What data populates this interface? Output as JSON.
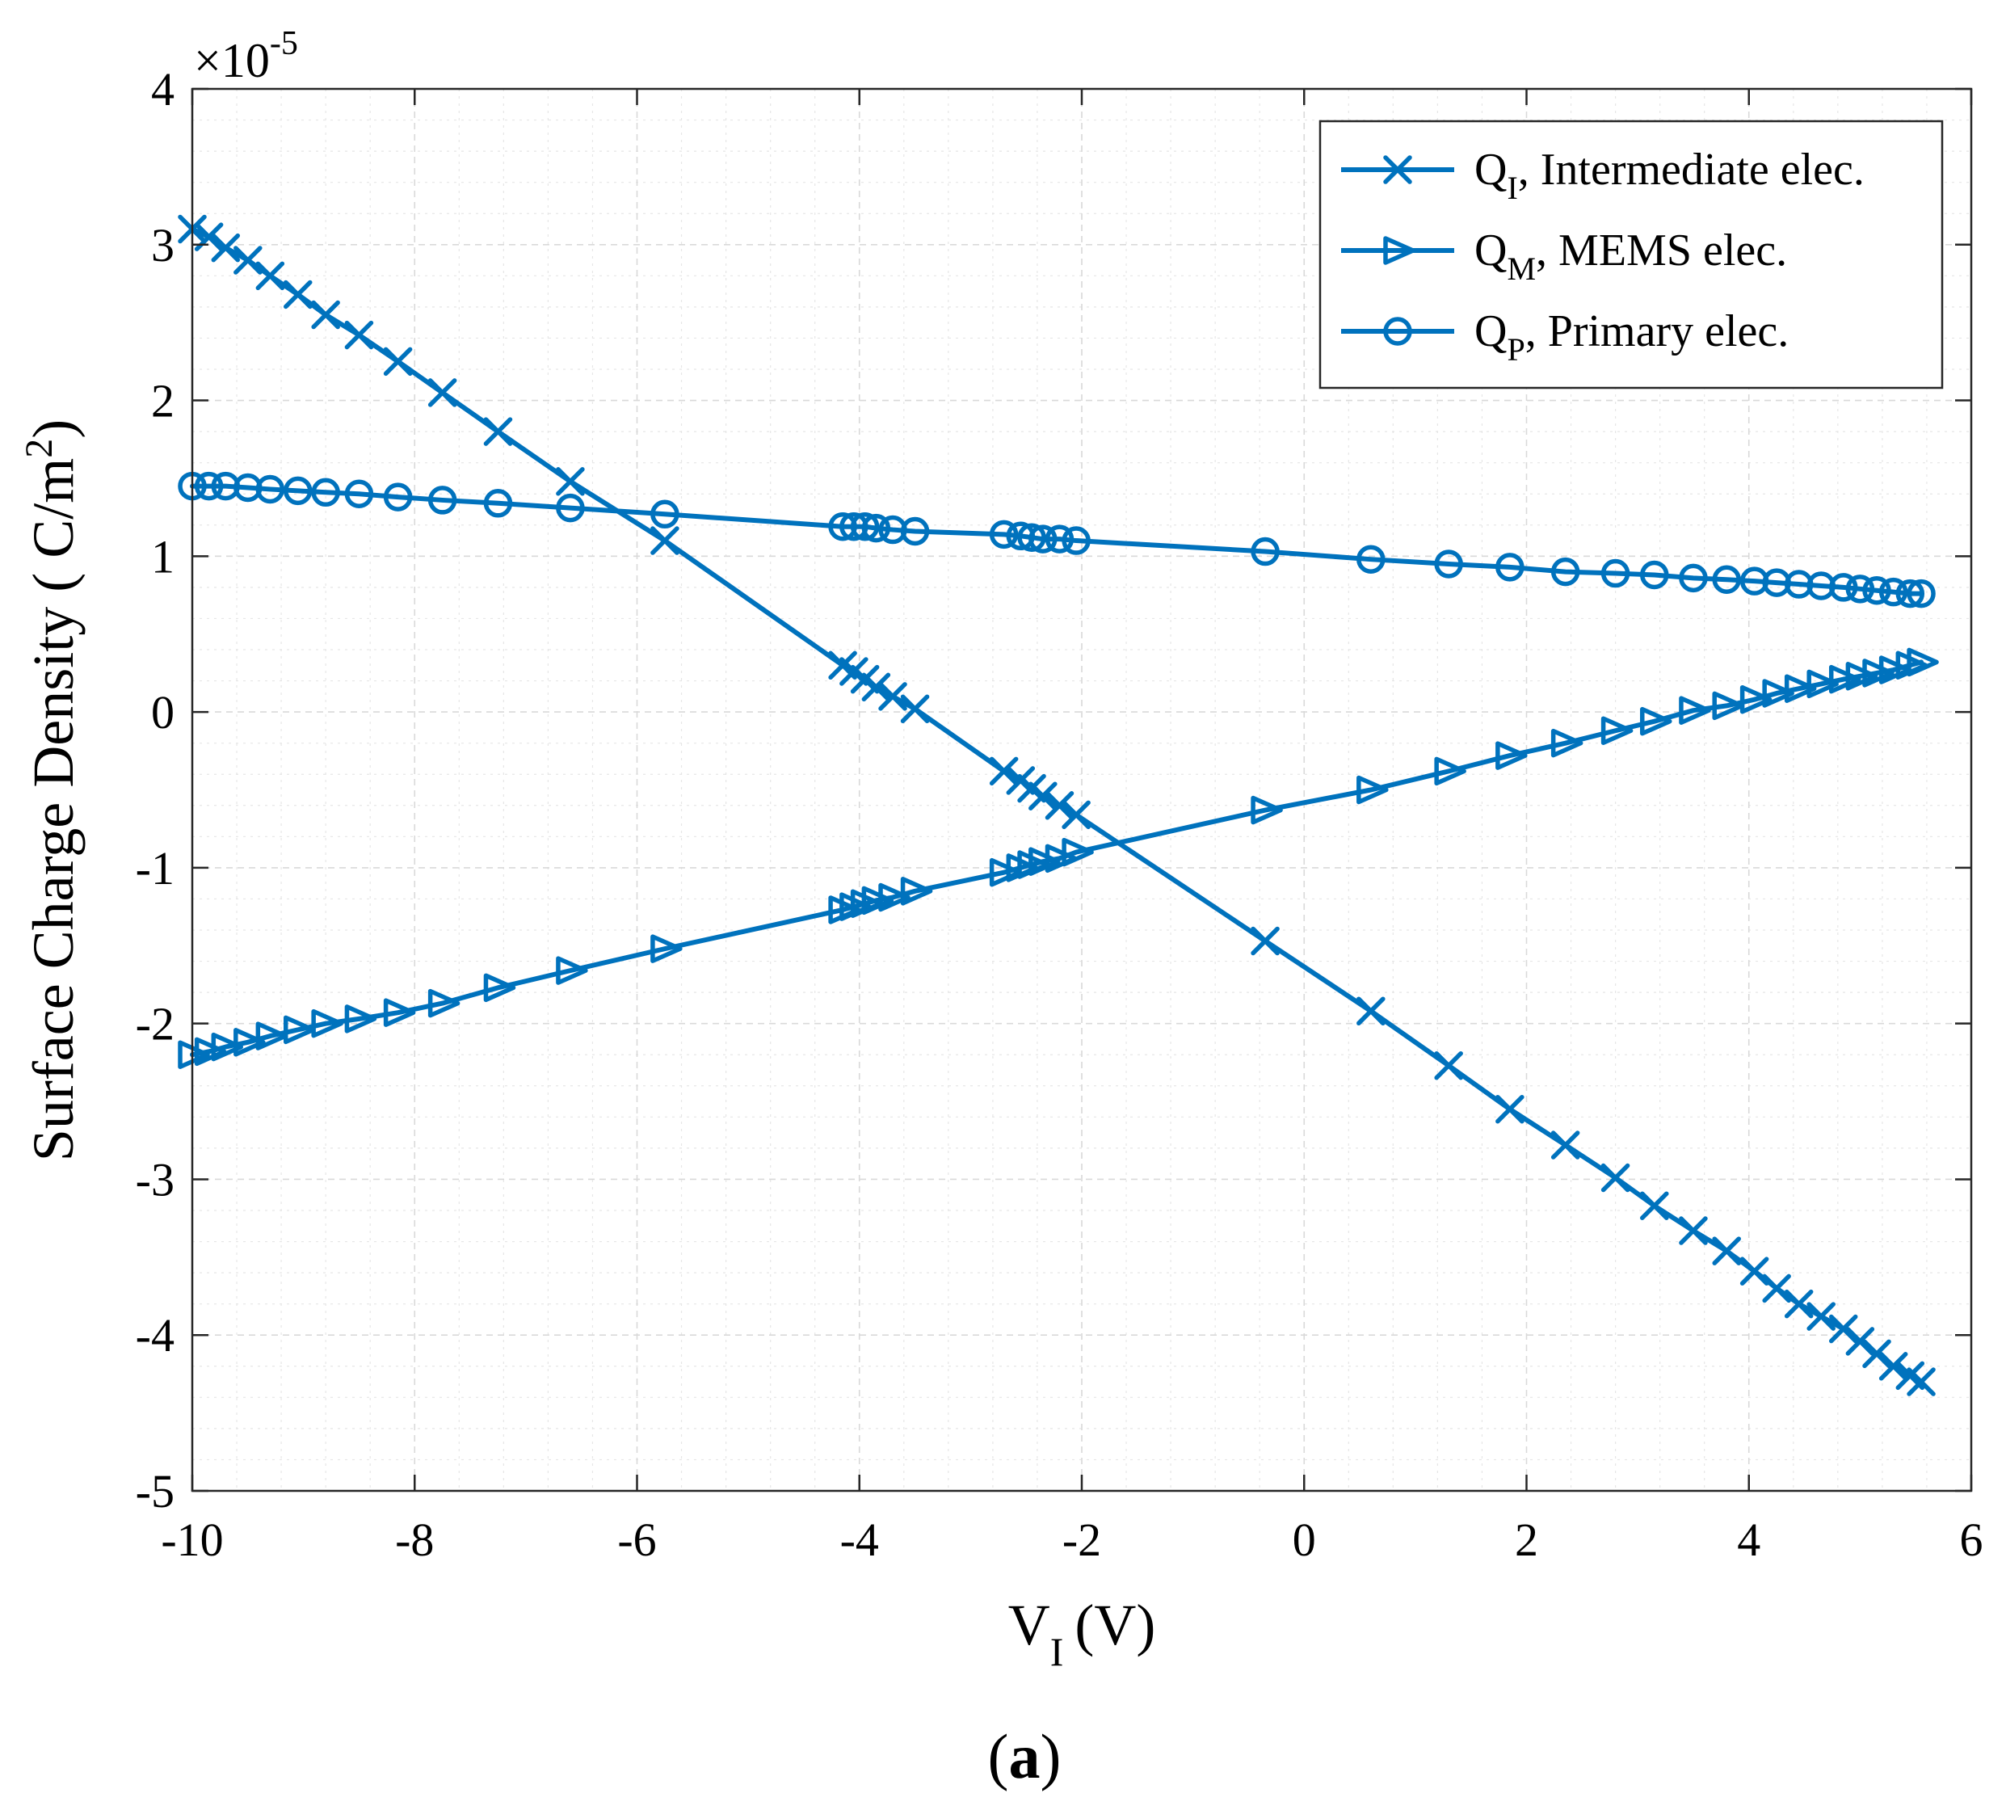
{
  "chart_data": {
    "type": "line",
    "title": "",
    "xlabel": {
      "main": "V",
      "sub": "I",
      "unit": "(V)"
    },
    "ylabel": {
      "prefix": "Surface Charge Density ( C/m",
      "sup": "2",
      "suffix": ")"
    },
    "y_scale": {
      "base": "10",
      "exponent": "-5"
    },
    "xlim": [
      -10,
      6
    ],
    "ylim": [
      -5,
      4
    ],
    "x_ticks": [
      -10,
      -8,
      -6,
      -4,
      -2,
      0,
      2,
      4,
      6
    ],
    "y_ticks": [
      -5,
      -4,
      -3,
      -2,
      -1,
      0,
      1,
      2,
      3,
      4
    ],
    "x_tick_labels": [
      "-10",
      "-8",
      "-6",
      "-4",
      "-2",
      "0",
      "2",
      "4",
      "6"
    ],
    "y_tick_labels": [
      "-5",
      "-4",
      "-3",
      "-2",
      "-1",
      "0",
      "1",
      "2",
      "3",
      "4"
    ],
    "grid": "on (major + minor)",
    "legend_position": "top-right",
    "color": "#0072bd",
    "caption": {
      "open": "(",
      "letter": "a",
      "close": ")"
    },
    "series": [
      {
        "name": "Q_I, Intermediate elec.",
        "legend": {
          "main": "Q",
          "sub": "I",
          "rest": ", Intermediate elec."
        },
        "marker": "x",
        "x": [
          -10,
          -9.85,
          -9.7,
          -9.5,
          -9.3,
          -9.05,
          -8.8,
          -8.5,
          -8.15,
          -7.75,
          -7.25,
          -6.6,
          -5.75,
          -4.15,
          -4.05,
          -3.95,
          -3.85,
          -3.7,
          -3.5,
          -2.7,
          -2.55,
          -2.45,
          -2.35,
          -2.2,
          -2.05,
          -0.35,
          0.6,
          1.3,
          1.85,
          2.35,
          2.8,
          3.15,
          3.5,
          3.8,
          4.05,
          4.25,
          4.45,
          4.65,
          4.85,
          5.0,
          5.15,
          5.3,
          5.45,
          5.55
        ],
        "values": [
          3.1,
          3.05,
          2.98,
          2.9,
          2.8,
          2.68,
          2.55,
          2.42,
          2.25,
          2.05,
          1.8,
          1.48,
          1.1,
          0.3,
          0.26,
          0.21,
          0.16,
          0.1,
          0.02,
          -0.38,
          -0.44,
          -0.49,
          -0.54,
          -0.6,
          -0.66,
          -1.47,
          -1.92,
          -2.27,
          -2.55,
          -2.78,
          -2.99,
          -3.17,
          -3.33,
          -3.46,
          -3.59,
          -3.7,
          -3.8,
          -3.88,
          -3.96,
          -4.04,
          -4.12,
          -4.2,
          -4.26,
          -4.3
        ]
      },
      {
        "name": "Q_M, MEMS elec.",
        "legend": {
          "main": "Q",
          "sub": "M",
          "rest": ", MEMS elec."
        },
        "marker": "triangle-right",
        "x": [
          -10,
          -9.85,
          -9.7,
          -9.5,
          -9.3,
          -9.05,
          -8.8,
          -8.5,
          -8.15,
          -7.75,
          -7.25,
          -6.6,
          -5.75,
          -4.15,
          -4.05,
          -3.95,
          -3.85,
          -3.7,
          -3.5,
          -2.7,
          -2.55,
          -2.45,
          -2.35,
          -2.2,
          -2.05,
          -0.35,
          0.6,
          1.3,
          1.85,
          2.35,
          2.8,
          3.15,
          3.5,
          3.8,
          4.05,
          4.25,
          4.45,
          4.65,
          4.85,
          5.0,
          5.15,
          5.3,
          5.45,
          5.55
        ],
        "values": [
          -2.2,
          -2.18,
          -2.15,
          -2.12,
          -2.08,
          -2.04,
          -2.0,
          -1.97,
          -1.93,
          -1.87,
          -1.77,
          -1.66,
          -1.52,
          -1.27,
          -1.25,
          -1.23,
          -1.21,
          -1.19,
          -1.15,
          -1.03,
          -1.0,
          -0.98,
          -0.96,
          -0.94,
          -0.9,
          -0.63,
          -0.5,
          -0.38,
          -0.28,
          -0.2,
          -0.12,
          -0.06,
          0.01,
          0.04,
          0.08,
          0.12,
          0.15,
          0.18,
          0.21,
          0.23,
          0.25,
          0.27,
          0.3,
          0.32
        ]
      },
      {
        "name": "Q_P, Primary elec.",
        "legend": {
          "main": "Q",
          "sub": "P",
          "rest": ", Primary elec."
        },
        "marker": "circle",
        "x": [
          -10,
          -9.85,
          -9.7,
          -9.5,
          -9.3,
          -9.05,
          -8.8,
          -8.5,
          -8.15,
          -7.75,
          -7.25,
          -6.6,
          -5.75,
          -4.15,
          -4.05,
          -3.95,
          -3.85,
          -3.7,
          -3.5,
          -2.7,
          -2.55,
          -2.45,
          -2.35,
          -2.2,
          -2.05,
          -0.35,
          0.6,
          1.3,
          1.85,
          2.35,
          2.8,
          3.15,
          3.5,
          3.8,
          4.05,
          4.25,
          4.45,
          4.65,
          4.85,
          5.0,
          5.15,
          5.3,
          5.45,
          5.55
        ],
        "values": [
          1.45,
          1.45,
          1.45,
          1.44,
          1.43,
          1.42,
          1.41,
          1.4,
          1.38,
          1.36,
          1.34,
          1.31,
          1.27,
          1.19,
          1.19,
          1.19,
          1.18,
          1.17,
          1.16,
          1.14,
          1.13,
          1.12,
          1.11,
          1.11,
          1.1,
          1.03,
          0.98,
          0.95,
          0.93,
          0.9,
          0.89,
          0.88,
          0.86,
          0.85,
          0.84,
          0.83,
          0.82,
          0.81,
          0.8,
          0.79,
          0.78,
          0.77,
          0.76,
          0.76
        ]
      }
    ]
  }
}
